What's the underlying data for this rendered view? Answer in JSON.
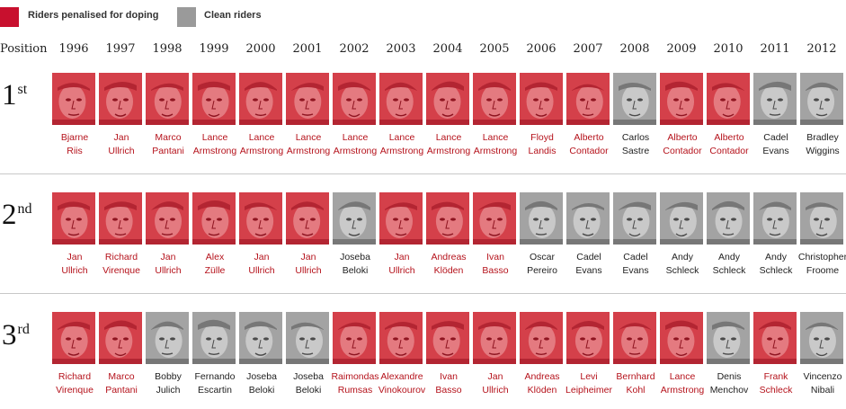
{
  "legend": {
    "doping_label": "Riders penalised for doping",
    "clean_label": "Clean riders"
  },
  "colors": {
    "doping": "#c8102e",
    "doping_photo": "#d23a44",
    "clean_photo": "#9a9a9a",
    "doping_text": "#b5121b",
    "clean_text": "#222222"
  },
  "header": {
    "position_label": "Position"
  },
  "years": [
    "1996",
    "1997",
    "1998",
    "1999",
    "2000",
    "2001",
    "2002",
    "2003",
    "2004",
    "2005",
    "2006",
    "2007",
    "2008",
    "2009",
    "2010",
    "2011",
    "2012"
  ],
  "ranks": [
    {
      "number": "1",
      "suffix": "st"
    },
    {
      "number": "2",
      "suffix": "nd"
    },
    {
      "number": "3",
      "suffix": "rd"
    }
  ],
  "rows": [
    [
      {
        "first": "Bjarne",
        "last": "Riis",
        "doping": true
      },
      {
        "first": "Jan",
        "last": "Ullrich",
        "doping": true
      },
      {
        "first": "Marco",
        "last": "Pantani",
        "doping": true
      },
      {
        "first": "Lance",
        "last": "Armstrong",
        "doping": true
      },
      {
        "first": "Lance",
        "last": "Armstrong",
        "doping": true
      },
      {
        "first": "Lance",
        "last": "Armstrong",
        "doping": true
      },
      {
        "first": "Lance",
        "last": "Armstrong",
        "doping": true
      },
      {
        "first": "Lance",
        "last": "Armstrong",
        "doping": true
      },
      {
        "first": "Lance",
        "last": "Armstrong",
        "doping": true
      },
      {
        "first": "Lance",
        "last": "Armstrong",
        "doping": true
      },
      {
        "first": "Floyd",
        "last": "Landis",
        "doping": true
      },
      {
        "first": "Alberto",
        "last": "Contador",
        "doping": true
      },
      {
        "first": "Carlos",
        "last": "Sastre",
        "doping": false
      },
      {
        "first": "Alberto",
        "last": "Contador",
        "doping": true
      },
      {
        "first": "Alberto",
        "last": "Contador",
        "doping": true
      },
      {
        "first": "Cadel",
        "last": "Evans",
        "doping": false
      },
      {
        "first": "Bradley",
        "last": "Wiggins",
        "doping": false
      }
    ],
    [
      {
        "first": "Jan",
        "last": "Ullrich",
        "doping": true
      },
      {
        "first": "Richard",
        "last": "Virenque",
        "doping": true
      },
      {
        "first": "Jan",
        "last": "Ullrich",
        "doping": true
      },
      {
        "first": "Alex",
        "last": "Zülle",
        "doping": true
      },
      {
        "first": "Jan",
        "last": "Ullrich",
        "doping": true
      },
      {
        "first": "Jan",
        "last": "Ullrich",
        "doping": true
      },
      {
        "first": "Joseba",
        "last": "Beloki",
        "doping": false
      },
      {
        "first": "Jan",
        "last": "Ullrich",
        "doping": true
      },
      {
        "first": "Andreas",
        "last": "Klöden",
        "doping": true
      },
      {
        "first": "Ivan",
        "last": "Basso",
        "doping": true
      },
      {
        "first": "Oscar",
        "last": "Pereiro",
        "doping": false
      },
      {
        "first": "Cadel",
        "last": "Evans",
        "doping": false
      },
      {
        "first": "Cadel",
        "last": "Evans",
        "doping": false
      },
      {
        "first": "Andy",
        "last": "Schleck",
        "doping": false
      },
      {
        "first": "Andy",
        "last": "Schleck",
        "doping": false
      },
      {
        "first": "Andy",
        "last": "Schleck",
        "doping": false
      },
      {
        "first": "Christopher",
        "last": "Froome",
        "doping": false
      }
    ],
    [
      {
        "first": "Richard",
        "last": "Virenque",
        "doping": true
      },
      {
        "first": "Marco",
        "last": "Pantani",
        "doping": true
      },
      {
        "first": "Bobby",
        "last": "Julich",
        "doping": false
      },
      {
        "first": "Fernando",
        "last": "Escartin",
        "doping": false
      },
      {
        "first": "Joseba",
        "last": "Beloki",
        "doping": false
      },
      {
        "first": "Joseba",
        "last": "Beloki",
        "doping": false
      },
      {
        "first": "Raimondas",
        "last": "Rumsas",
        "doping": true
      },
      {
        "first": "Alexandre",
        "last": "Vinokourov",
        "doping": true
      },
      {
        "first": "Ivan",
        "last": "Basso",
        "doping": true
      },
      {
        "first": "Jan",
        "last": "Ullrich",
        "doping": true
      },
      {
        "first": "Andreas",
        "last": "Klöden",
        "doping": true
      },
      {
        "first": "Levi",
        "last": "Leipheimer",
        "doping": true
      },
      {
        "first": "Bernhard",
        "last": "Kohl",
        "doping": true
      },
      {
        "first": "Lance",
        "last": "Armstrong",
        "doping": true
      },
      {
        "first": "Denis",
        "last": "Menchov",
        "doping": false
      },
      {
        "first": "Frank",
        "last": "Schleck",
        "doping": true
      },
      {
        "first": "Vincenzo",
        "last": "Nibali",
        "doping": false
      }
    ]
  ]
}
